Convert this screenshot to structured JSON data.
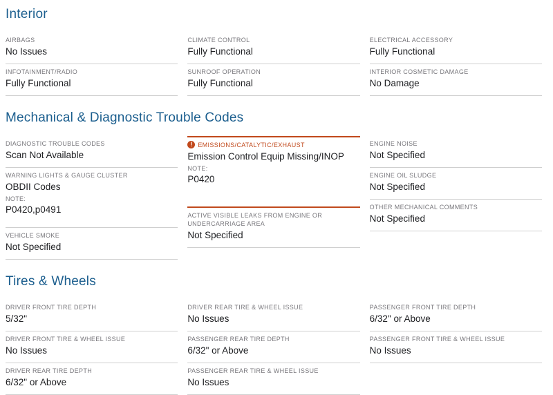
{
  "colors": {
    "section_heading": "#1b5e8e",
    "warning_accent": "#c1491c",
    "field_label": "#77767b",
    "field_value": "#202124",
    "divider": "#cfcfcf"
  },
  "icons": {
    "warning_icon": {
      "name": "warning-icon",
      "glyph": "!"
    }
  },
  "sections": [
    {
      "title": "Interior",
      "columns": [
        [
          {
            "label": "AIRBAGS",
            "value": "No Issues"
          },
          {
            "label": "INFOTAINMENT/RADIO",
            "value": "Fully Functional"
          }
        ],
        [
          {
            "label": "CLIMATE CONTROL",
            "value": "Fully Functional"
          },
          {
            "label": "SUNROOF OPERATION",
            "value": "Fully Functional"
          }
        ],
        [
          {
            "label": "ELECTRICAL ACCESSORY",
            "value": "Fully Functional"
          },
          {
            "label": "INTERIOR COSMETIC DAMAGE",
            "value": "No Damage"
          }
        ]
      ]
    },
    {
      "title": "Mechanical & Diagnostic Trouble Codes",
      "columns": [
        [
          {
            "label": "DIAGNOSTIC TROUBLE CODES",
            "value": "Scan Not Available"
          },
          {
            "label": "WARNING LIGHTS & GAUGE CLUSTER",
            "value": "OBDII Codes",
            "note_label": "NOTE:",
            "note": "P0420,p0491"
          },
          {
            "label": "VEHICLE SMOKE",
            "value": "Not Specified"
          }
        ],
        [
          {
            "label": "EMISSIONS/CATALYTIC/EXHAUST",
            "value": "Emission Control Equip Missing/INOP",
            "note_label": "NOTE:",
            "note": "P0420",
            "warning": true
          },
          {
            "label": "ACTIVE VISIBLE LEAKS FROM ENGINE OR UNDERCARRIAGE AREA",
            "value": "Not Specified"
          }
        ],
        [
          {
            "label": "ENGINE NOISE",
            "value": "Not Specified"
          },
          {
            "label": "ENGINE OIL SLUDGE",
            "value": "Not Specified"
          },
          {
            "label": "OTHER MECHANICAL COMMENTS",
            "value": "Not Specified"
          }
        ]
      ]
    },
    {
      "title": "Tires & Wheels",
      "columns": [
        [
          {
            "label": "DRIVER FRONT TIRE DEPTH",
            "value": "5/32\""
          },
          {
            "label": "DRIVER FRONT TIRE & WHEEL ISSUE",
            "value": "No Issues"
          },
          {
            "label": "DRIVER REAR TIRE DEPTH",
            "value": "6/32\" or Above"
          }
        ],
        [
          {
            "label": "DRIVER REAR TIRE & WHEEL ISSUE",
            "value": "No Issues"
          },
          {
            "label": "PASSENGER REAR TIRE DEPTH",
            "value": "6/32\" or Above"
          },
          {
            "label": "PASSENGER REAR TIRE & WHEEL ISSUE",
            "value": "No Issues"
          }
        ],
        [
          {
            "label": "PASSENGER FRONT TIRE DEPTH",
            "value": "6/32\" or Above"
          },
          {
            "label": "PASSENGER FRONT TIRE & WHEEL ISSUE",
            "value": "No Issues"
          }
        ]
      ]
    }
  ]
}
